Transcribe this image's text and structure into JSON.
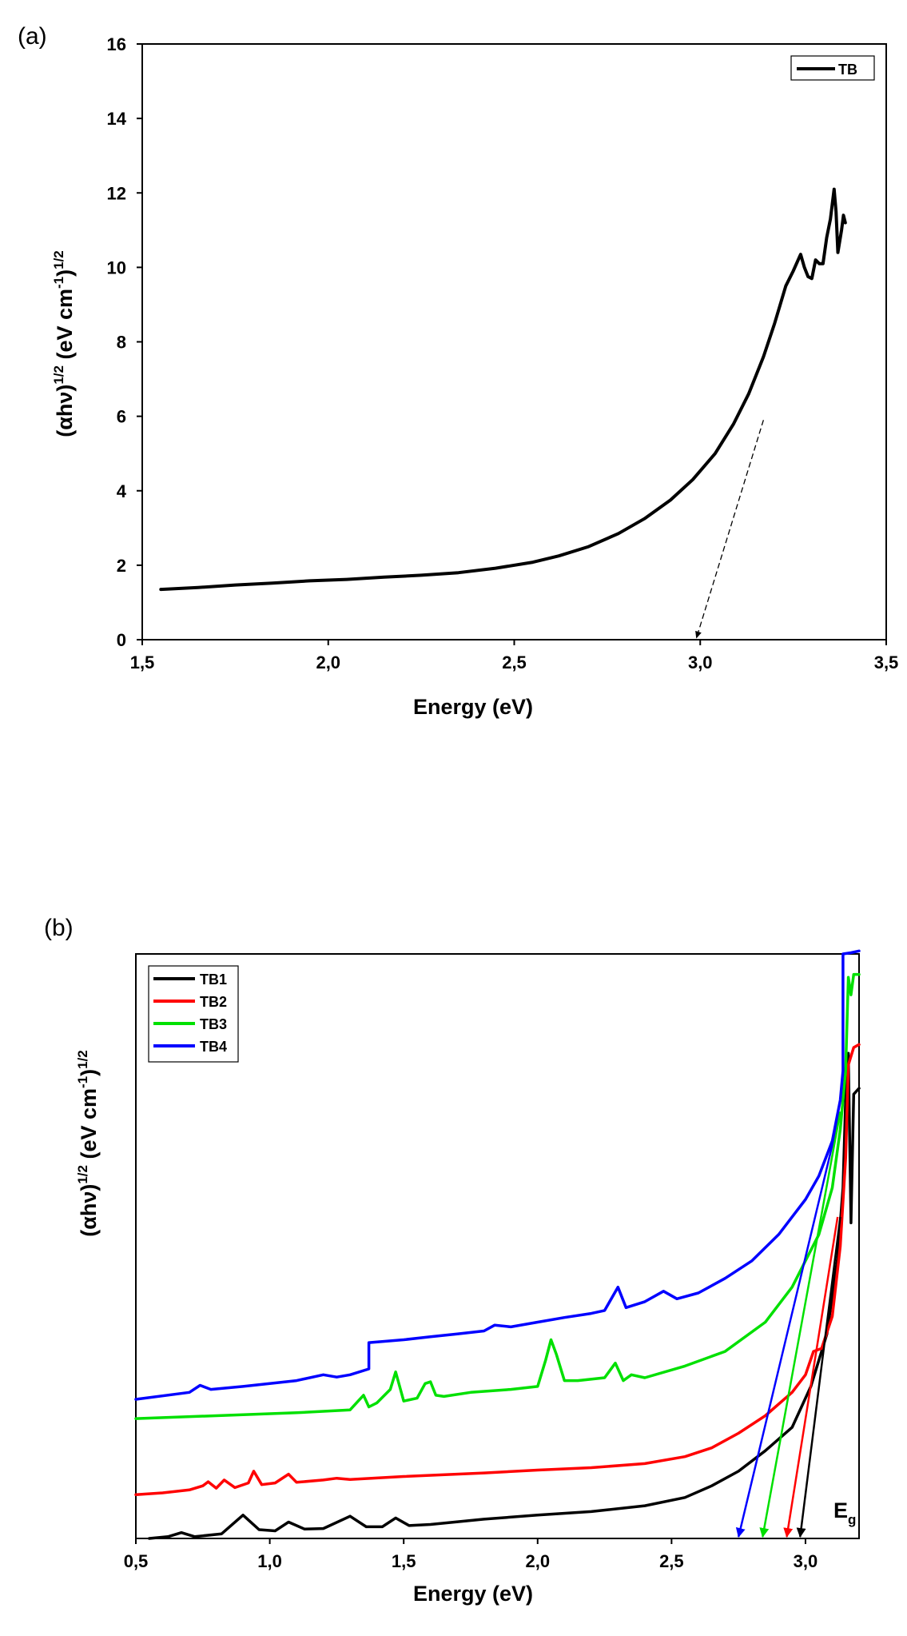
{
  "chart_data": [
    {
      "panel": "(a)",
      "type": "line",
      "title": "",
      "xlabel": "Energy (eV)",
      "ylabel_parts": [
        "(αhν)",
        "1/2",
        " (eV cm",
        "-1",
        ")",
        "1/2"
      ],
      "xlim": [
        1.5,
        3.5
      ],
      "ylim": [
        0,
        16
      ],
      "xticks": [
        "1,5",
        "2,0",
        "2,5",
        "3,0",
        "3,5"
      ],
      "xtick_values": [
        1.5,
        2.0,
        2.5,
        3.0,
        3.5
      ],
      "yticks": [
        "0",
        "2",
        "4",
        "6",
        "8",
        "10",
        "12",
        "14",
        "16"
      ],
      "ytick_values": [
        0,
        2,
        4,
        6,
        8,
        10,
        12,
        14,
        16
      ],
      "legend": {
        "position": "top-right",
        "entries": [
          "TB"
        ]
      },
      "series": [
        {
          "name": "TB",
          "color": "#000000",
          "x": [
            1.55,
            1.65,
            1.75,
            1.85,
            1.95,
            2.05,
            2.15,
            2.25,
            2.35,
            2.45,
            2.55,
            2.62,
            2.7,
            2.78,
            2.85,
            2.92,
            2.98,
            3.04,
            3.09,
            3.13,
            3.17,
            3.2,
            3.23,
            3.25,
            3.27,
            3.28,
            3.29,
            3.3,
            3.31,
            3.32,
            3.33,
            3.34,
            3.35,
            3.36,
            3.365,
            3.37,
            3.38,
            3.385,
            3.39
          ],
          "y": [
            1.35,
            1.4,
            1.47,
            1.52,
            1.58,
            1.62,
            1.68,
            1.73,
            1.8,
            1.92,
            2.08,
            2.25,
            2.5,
            2.85,
            3.25,
            3.75,
            4.3,
            5.0,
            5.8,
            6.6,
            7.6,
            8.5,
            9.5,
            9.9,
            10.35,
            10.0,
            9.75,
            9.7,
            10.2,
            10.1,
            10.1,
            10.8,
            11.3,
            12.1,
            11.5,
            10.4,
            11.0,
            11.4,
            11.2
          ]
        }
      ],
      "annotations": [
        {
          "type": "tangent-arrow",
          "from": [
            3.17,
            5.9
          ],
          "to": [
            2.99,
            0.05
          ]
        }
      ]
    },
    {
      "panel": "(b)",
      "type": "line",
      "title": "",
      "xlabel": "Energy (eV)",
      "ylabel_parts": [
        "(αhν)",
        "1/2",
        " (eV cm",
        "-1",
        ")",
        "1/2"
      ],
      "xlim": [
        0.5,
        3.2
      ],
      "ylim": [
        0,
        100
      ],
      "xticks": [
        "0,5",
        "1,0",
        "1,5",
        "2,0",
        "2,5",
        "3,0"
      ],
      "xtick_values": [
        0.5,
        1.0,
        1.5,
        2.0,
        2.5,
        3.0
      ],
      "yticks": [],
      "legend": {
        "position": "top-left",
        "entries": [
          "TB1",
          "TB2",
          "TB3",
          "TB4"
        ]
      },
      "series": [
        {
          "name": "TB1",
          "color": "#000000",
          "x": [
            0.55,
            0.62,
            0.67,
            0.72,
            0.82,
            0.9,
            0.96,
            1.02,
            1.07,
            1.13,
            1.2,
            1.3,
            1.36,
            1.42,
            1.47,
            1.52,
            1.6,
            1.8,
            2.0,
            2.2,
            2.4,
            2.55,
            2.65,
            2.75,
            2.85,
            2.95,
            3.02,
            3.08,
            3.12,
            3.14,
            3.15,
            3.16,
            3.17,
            3.175,
            3.18,
            3.2
          ],
          "y": [
            0,
            0.3,
            1.0,
            0.3,
            0.8,
            4.0,
            1.5,
            1.3,
            2.8,
            1.6,
            1.7,
            3.8,
            2.0,
            2.0,
            3.5,
            2.2,
            2.4,
            3.3,
            4.0,
            4.6,
            5.6,
            7.0,
            9.0,
            11.5,
            15.0,
            19.0,
            26.0,
            35.0,
            48.0,
            60.0,
            75.0,
            83.0,
            54.0,
            65.0,
            76.0,
            77.0
          ]
        },
        {
          "name": "TB2",
          "color": "#ff0000",
          "x": [
            0.5,
            0.6,
            0.7,
            0.75,
            0.77,
            0.8,
            0.83,
            0.87,
            0.92,
            0.94,
            0.97,
            1.02,
            1.07,
            1.1,
            1.2,
            1.25,
            1.3,
            1.5,
            1.8,
            2.0,
            2.2,
            2.4,
            2.55,
            2.65,
            2.75,
            2.85,
            2.95,
            3.0,
            3.03,
            3.06,
            3.1,
            3.13,
            3.15,
            3.16,
            3.18,
            3.2
          ],
          "y": [
            7.5,
            7.8,
            8.3,
            9.0,
            9.7,
            8.6,
            10.0,
            8.7,
            9.5,
            11.5,
            9.2,
            9.5,
            11.0,
            9.6,
            10.0,
            10.3,
            10.1,
            10.6,
            11.2,
            11.7,
            12.1,
            12.8,
            14.0,
            15.5,
            18.0,
            21.0,
            25.0,
            28.0,
            32.0,
            32.5,
            38.0,
            50.0,
            65.0,
            81.0,
            84.0,
            84.5
          ]
        },
        {
          "name": "TB3",
          "color": "#00e000",
          "x": [
            0.5,
            0.8,
            1.1,
            1.3,
            1.33,
            1.35,
            1.37,
            1.4,
            1.45,
            1.47,
            1.5,
            1.55,
            1.58,
            1.6,
            1.62,
            1.65,
            1.75,
            1.9,
            2.0,
            2.03,
            2.05,
            2.07,
            2.1,
            2.15,
            2.25,
            2.29,
            2.32,
            2.35,
            2.4,
            2.55,
            2.7,
            2.85,
            2.95,
            3.05,
            3.1,
            3.13,
            3.15,
            3.16,
            3.17,
            3.18,
            3.2
          ],
          "y": [
            20.5,
            21.0,
            21.5,
            22.0,
            23.5,
            24.5,
            22.5,
            23.2,
            25.5,
            28.5,
            23.5,
            24.0,
            26.5,
            26.8,
            24.5,
            24.3,
            25.0,
            25.5,
            26.0,
            30.5,
            34.0,
            31.5,
            27.0,
            27.0,
            27.5,
            30.0,
            27.0,
            28.0,
            27.5,
            29.5,
            32.0,
            37.0,
            43.0,
            52.0,
            60.0,
            70.0,
            80.0,
            96.0,
            93.0,
            96.5,
            96.5
          ]
        },
        {
          "name": "TB4",
          "color": "#0000ff",
          "x": [
            0.5,
            0.7,
            0.74,
            0.78,
            0.9,
            1.1,
            1.2,
            1.25,
            1.3,
            1.37,
            1.37,
            1.5,
            1.6,
            1.7,
            1.8,
            1.84,
            1.9,
            2.0,
            2.1,
            2.2,
            2.25,
            2.3,
            2.33,
            2.4,
            2.47,
            2.52,
            2.6,
            2.7,
            2.8,
            2.9,
            3.0,
            3.05,
            3.1,
            3.13,
            3.14,
            3.14,
            3.17,
            3.2
          ],
          "y": [
            23.8,
            25.0,
            26.2,
            25.5,
            26.0,
            27.0,
            28.0,
            27.6,
            28.0,
            29.0,
            33.5,
            34.0,
            34.5,
            35.0,
            35.5,
            36.5,
            36.2,
            37.0,
            37.8,
            38.5,
            39.0,
            43.0,
            39.5,
            40.5,
            42.3,
            41.0,
            42.0,
            44.5,
            47.5,
            52.0,
            58.0,
            62.0,
            68.0,
            75.0,
            80.0,
            100.0,
            100.2,
            100.5
          ]
        }
      ],
      "tangent_lines": [
        {
          "name": "TB4",
          "color": "#0000ff",
          "from": [
            3.13,
            73.0
          ],
          "to": [
            2.75,
            0.0
          ]
        },
        {
          "name": "TB3",
          "color": "#00e000",
          "from": [
            3.13,
            73.0
          ],
          "to": [
            2.84,
            0.0
          ]
        },
        {
          "name": "TB2",
          "color": "#ff0000",
          "from": [
            3.12,
            55.0
          ],
          "to": [
            2.93,
            0.0
          ]
        },
        {
          "name": "TB1",
          "color": "#000000",
          "from": [
            3.13,
            55.0
          ],
          "to": [
            2.98,
            0.0
          ]
        }
      ],
      "annotations": [
        {
          "type": "text",
          "text": "E",
          "subscript": "g",
          "at": [
            3.05,
            3.0
          ]
        }
      ]
    }
  ]
}
